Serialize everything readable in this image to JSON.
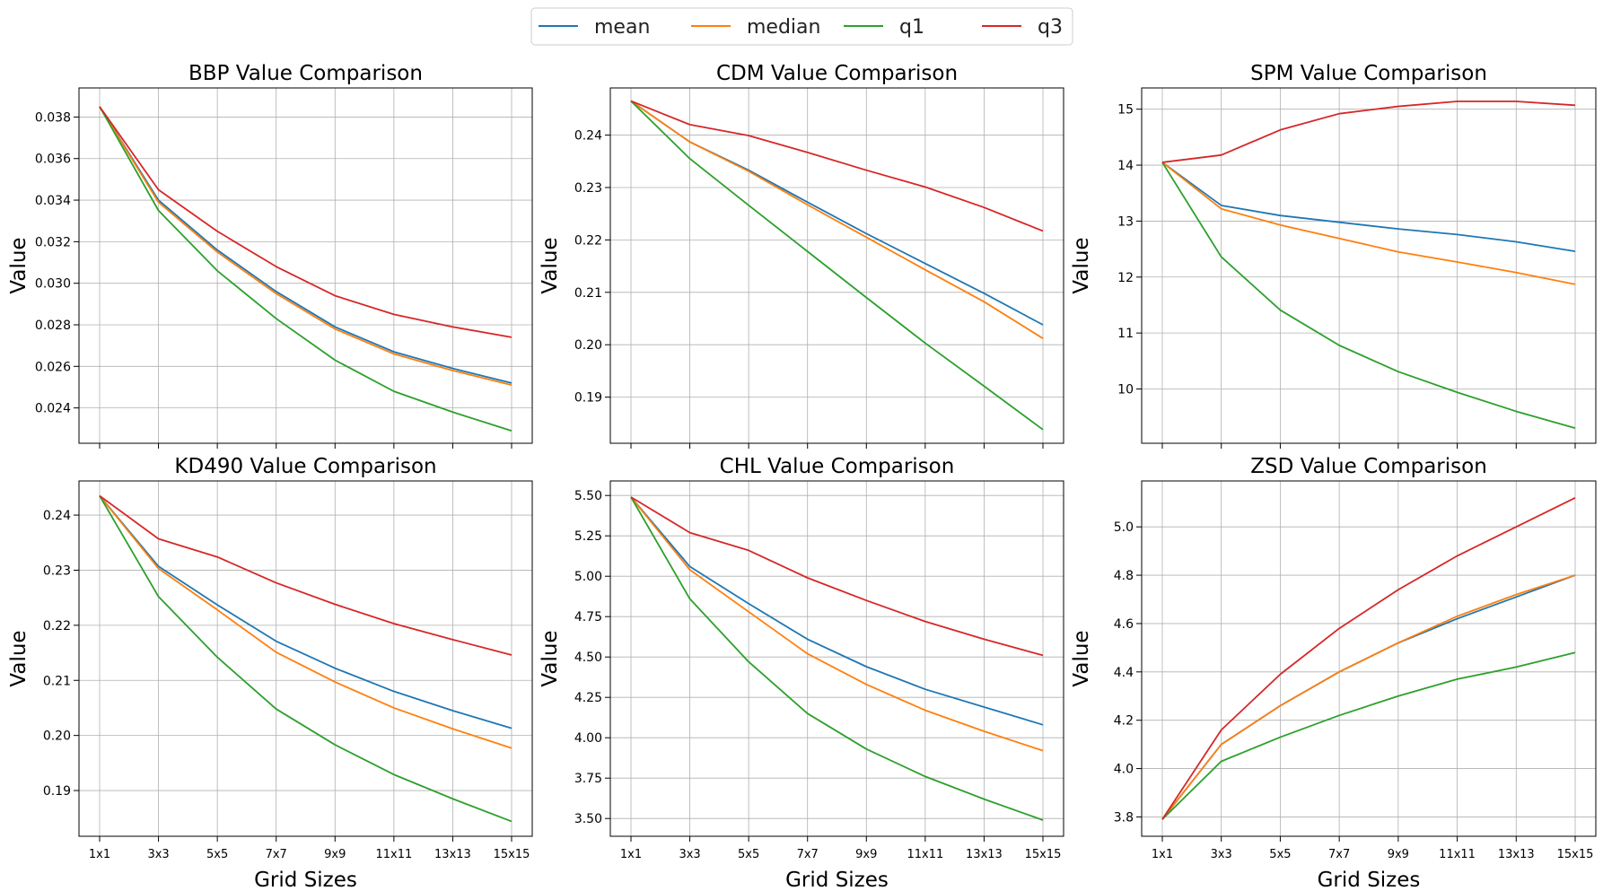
{
  "legend": {
    "placement": "top-center",
    "entries": [
      {
        "name": "mean",
        "color": "#1f77b4"
      },
      {
        "name": "median",
        "color": "#ff7f0e"
      },
      {
        "name": "q1",
        "color": "#2ca02c"
      },
      {
        "name": "q3",
        "color": "#d62728"
      }
    ]
  },
  "chart_data": [
    {
      "type": "line",
      "title": "BBP Value Comparison",
      "xlabel": "",
      "ylabel": "Value",
      "categories": [
        "1x1",
        "3x3",
        "5x5",
        "7x7",
        "9x9",
        "11x11",
        "13x13",
        "15x15"
      ],
      "ylim": [
        0.0223,
        0.0394
      ],
      "yticks": [
        "0.024",
        "0.026",
        "0.028",
        "0.030",
        "0.032",
        "0.034",
        "0.036",
        "0.038"
      ],
      "grid": true,
      "series": [
        {
          "name": "mean",
          "values": [
            0.0385,
            0.034,
            0.0316,
            0.0296,
            0.0279,
            0.0267,
            0.0259,
            0.0252
          ]
        },
        {
          "name": "median",
          "values": [
            0.0385,
            0.0339,
            0.0315,
            0.0295,
            0.0278,
            0.0266,
            0.0258,
            0.0251
          ]
        },
        {
          "name": "q1",
          "values": [
            0.0385,
            0.0335,
            0.0306,
            0.0283,
            0.0263,
            0.0248,
            0.0238,
            0.0229
          ]
        },
        {
          "name": "q3",
          "values": [
            0.0385,
            0.0345,
            0.0325,
            0.0308,
            0.0294,
            0.0285,
            0.0279,
            0.0274
          ]
        }
      ]
    },
    {
      "type": "line",
      "title": "CDM Value Comparison",
      "xlabel": "",
      "ylabel": "Value",
      "categories": [
        "1x1",
        "3x3",
        "5x5",
        "7x7",
        "9x9",
        "11x11",
        "13x13",
        "15x15"
      ],
      "ylim": [
        0.1812,
        0.249
      ],
      "yticks": [
        "0.19",
        "0.20",
        "0.21",
        "0.22",
        "0.23",
        "0.24"
      ],
      "grid": true,
      "series": [
        {
          "name": "mean",
          "values": [
            0.2465,
            0.2387,
            0.2333,
            0.2272,
            0.2212,
            0.2155,
            0.2098,
            0.2038
          ]
        },
        {
          "name": "median",
          "values": [
            0.2465,
            0.2387,
            0.2331,
            0.2267,
            0.2205,
            0.2143,
            0.2082,
            0.2012
          ]
        },
        {
          "name": "q1",
          "values": [
            0.2465,
            0.2355,
            0.2266,
            0.2178,
            0.209,
            0.2003,
            0.1921,
            0.1838
          ]
        },
        {
          "name": "q3",
          "values": [
            0.2465,
            0.242,
            0.2399,
            0.2367,
            0.2333,
            0.2301,
            0.2262,
            0.2217
          ]
        }
      ]
    },
    {
      "type": "line",
      "title": "SPM Value Comparison",
      "xlabel": "",
      "ylabel": "Value",
      "categories": [
        "1x1",
        "3x3",
        "5x5",
        "7x7",
        "9x9",
        "11x11",
        "13x13",
        "15x15"
      ],
      "ylim": [
        9.03,
        15.38
      ],
      "yticks": [
        "10",
        "11",
        "12",
        "13",
        "14",
        "15"
      ],
      "grid": true,
      "series": [
        {
          "name": "mean",
          "values": [
            14.05,
            13.28,
            13.1,
            12.98,
            12.86,
            12.76,
            12.63,
            12.46
          ]
        },
        {
          "name": "median",
          "values": [
            14.05,
            13.22,
            12.93,
            12.69,
            12.45,
            12.27,
            12.08,
            11.87
          ]
        },
        {
          "name": "q1",
          "values": [
            14.05,
            12.36,
            11.41,
            10.78,
            10.31,
            9.94,
            9.6,
            9.3
          ]
        },
        {
          "name": "q3",
          "values": [
            14.05,
            14.18,
            14.63,
            14.92,
            15.05,
            15.14,
            15.14,
            15.07
          ]
        }
      ]
    },
    {
      "type": "line",
      "title": "KD490 Value Comparison",
      "xlabel": "Grid Sizes",
      "ylabel": "Value",
      "categories": [
        "1x1",
        "3x3",
        "5x5",
        "7x7",
        "9x9",
        "11x11",
        "13x13",
        "15x15"
      ],
      "ylim": [
        0.1817,
        0.2462
      ],
      "yticks": [
        "0.19",
        "0.20",
        "0.21",
        "0.22",
        "0.23",
        "0.24"
      ],
      "grid": true,
      "series": [
        {
          "name": "mean",
          "values": [
            0.2435,
            0.2307,
            0.2237,
            0.2171,
            0.2122,
            0.208,
            0.2045,
            0.2013
          ]
        },
        {
          "name": "median",
          "values": [
            0.2435,
            0.2303,
            0.2228,
            0.2151,
            0.2097,
            0.205,
            0.2012,
            0.1977
          ]
        },
        {
          "name": "q1",
          "values": [
            0.2435,
            0.2252,
            0.2142,
            0.2048,
            0.1983,
            0.1929,
            0.1885,
            0.1844
          ]
        },
        {
          "name": "q3",
          "values": [
            0.2435,
            0.2357,
            0.2324,
            0.2277,
            0.2238,
            0.2203,
            0.2174,
            0.2146
          ]
        }
      ]
    },
    {
      "type": "line",
      "title": "CHL Value Comparison",
      "xlabel": "Grid Sizes",
      "ylabel": "Value",
      "categories": [
        "1x1",
        "3x3",
        "5x5",
        "7x7",
        "9x9",
        "11x11",
        "13x13",
        "15x15"
      ],
      "ylim": [
        3.39,
        5.59
      ],
      "yticks": [
        "3.50",
        "3.75",
        "4.00",
        "4.25",
        "4.50",
        "4.75",
        "5.00",
        "5.25",
        "5.50"
      ],
      "grid": true,
      "series": [
        {
          "name": "mean",
          "values": [
            5.49,
            5.06,
            4.83,
            4.61,
            4.44,
            4.3,
            4.19,
            4.08
          ]
        },
        {
          "name": "median",
          "values": [
            5.49,
            5.04,
            4.78,
            4.52,
            4.33,
            4.17,
            4.04,
            3.92
          ]
        },
        {
          "name": "q1",
          "values": [
            5.49,
            4.86,
            4.47,
            4.15,
            3.93,
            3.76,
            3.62,
            3.49
          ]
        },
        {
          "name": "q3",
          "values": [
            5.49,
            5.27,
            5.16,
            4.99,
            4.85,
            4.72,
            4.61,
            4.51
          ]
        }
      ]
    },
    {
      "type": "line",
      "title": "ZSD Value Comparison",
      "xlabel": "Grid Sizes",
      "ylabel": "Value",
      "categories": [
        "1x1",
        "3x3",
        "5x5",
        "7x7",
        "9x9",
        "11x11",
        "13x13",
        "15x15"
      ],
      "ylim": [
        3.72,
        5.19
      ],
      "yticks": [
        "3.8",
        "4.0",
        "4.2",
        "4.4",
        "4.6",
        "4.8",
        "5.0"
      ],
      "grid": true,
      "series": [
        {
          "name": "mean",
          "values": [
            3.79,
            4.1,
            4.26,
            4.4,
            4.52,
            4.62,
            4.71,
            4.8
          ]
        },
        {
          "name": "median",
          "values": [
            3.79,
            4.1,
            4.26,
            4.4,
            4.52,
            4.63,
            4.72,
            4.8
          ]
        },
        {
          "name": "q1",
          "values": [
            3.79,
            4.03,
            4.13,
            4.22,
            4.3,
            4.37,
            4.42,
            4.48
          ]
        },
        {
          "name": "q3",
          "values": [
            3.79,
            4.16,
            4.39,
            4.58,
            4.74,
            4.88,
            5.0,
            5.12
          ]
        }
      ]
    }
  ]
}
